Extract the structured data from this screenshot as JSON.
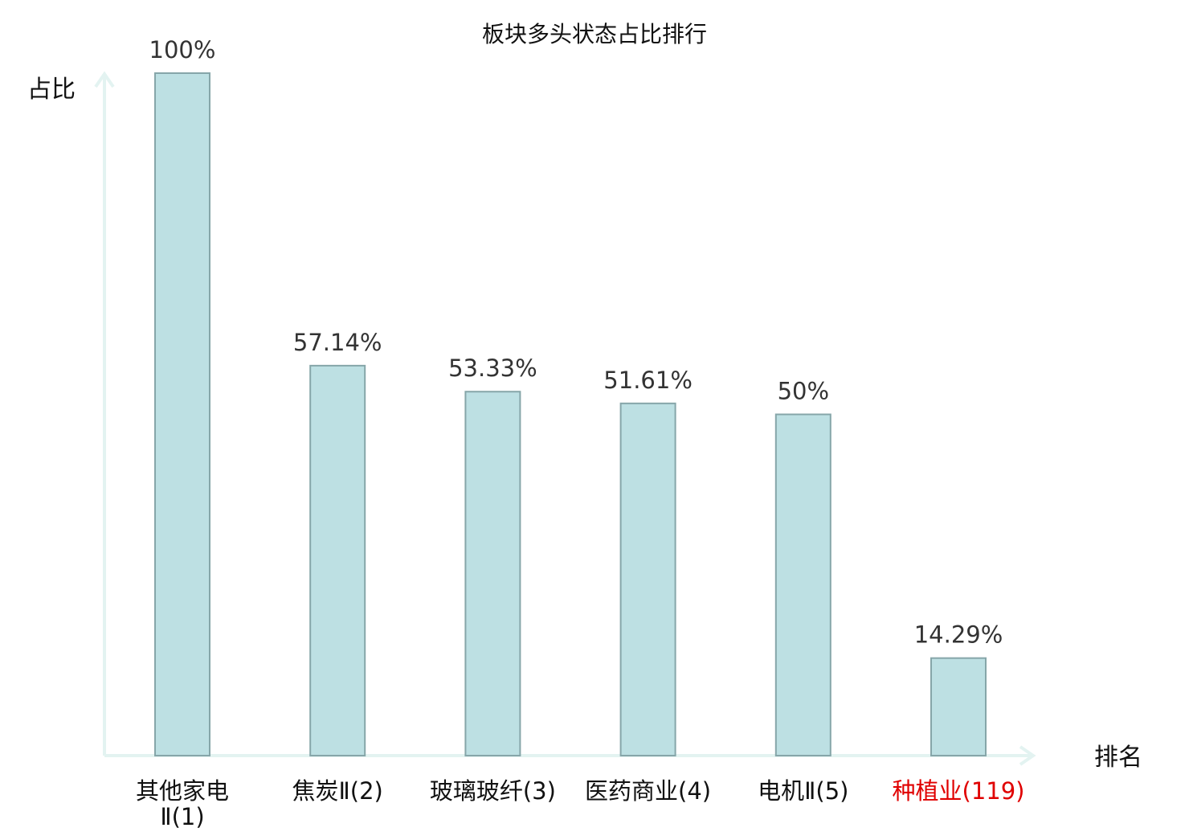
{
  "chart_data": {
    "type": "bar",
    "title": "板块多头状态占比排行",
    "ylabel": "占比",
    "xlabel": "排名",
    "ylim": [
      0,
      100
    ],
    "grid": false,
    "categories": [
      {
        "lines": [
          "其他家电",
          "Ⅱ(1)"
        ],
        "highlight": false
      },
      {
        "lines": [
          "焦炭Ⅱ(2)"
        ],
        "highlight": false
      },
      {
        "lines": [
          "玻璃玻纤(3)"
        ],
        "highlight": false
      },
      {
        "lines": [
          "医药商业(4)"
        ],
        "highlight": false
      },
      {
        "lines": [
          "电机Ⅱ(5)"
        ],
        "highlight": false
      },
      {
        "lines": [
          "种植业(119)"
        ],
        "highlight": true
      }
    ],
    "values": [
      100,
      57.14,
      53.33,
      51.61,
      50,
      14.29
    ],
    "value_labels": [
      "100%",
      "57.14%",
      "53.33%",
      "51.61%",
      "50%",
      "14.29%"
    ],
    "colors": {
      "bar_fill": "#bde0e3",
      "bar_stroke": "#86a6a9",
      "axis": "#e3f3f1",
      "text": "#111111",
      "value_text": "#333333",
      "highlight_text": "#e00000"
    }
  }
}
